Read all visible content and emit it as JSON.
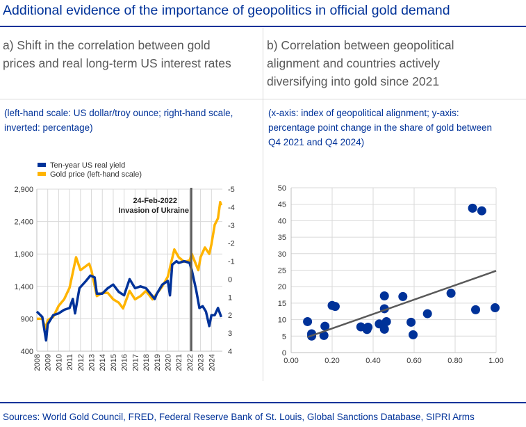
{
  "title": "Additional evidence of the importance of geopolitics in official gold demand",
  "panel_a": {
    "title_line1": "a) Shift in the correlation between gold",
    "title_line2": "prices and real long-term US interest rates",
    "subtitle_line1": "(left-hand scale: US dollar/troy ounce; right-hand scale,",
    "subtitle_line2": "inverted: percentage)"
  },
  "panel_b": {
    "title_line1": "b) Correlation between geopolitical",
    "title_line2": "alignment and countries actively",
    "title_line3": "diversifying into gold since 2021",
    "subtitle_line1": "(x-axis: index of geopolitical alignment; y-axis:",
    "subtitle_line2": "percentage point change in the share of gold between",
    "subtitle_line3": "Q4 2021 and Q4 2024)"
  },
  "sources": "Sources: World Gold Council, FRED, Federal Reserve Bank of St. Louis, Global Sanctions Database, SIPRI Arms",
  "chart_data": [
    {
      "type": "line",
      "legend_placement": "top-left",
      "grid": true,
      "xlim": [
        2008,
        2025
      ],
      "x_ticks": [
        "2008",
        "2009",
        "2010",
        "2011",
        "2012",
        "2013",
        "2014",
        "2015",
        "2016",
        "2017",
        "2018",
        "2019",
        "2020",
        "2021",
        "2022",
        "2023",
        "2024"
      ],
      "y_left": {
        "range": [
          400,
          2900
        ],
        "ticks": [
          "400",
          "900",
          "1,400",
          "1,900",
          "2,400",
          "2,900"
        ]
      },
      "y_right": {
        "range": [
          -5,
          4
        ],
        "inverted": true,
        "ticks": [
          "-5",
          "-4",
          "-3",
          "-2",
          "-1",
          "0",
          "1",
          "2",
          "3",
          "4"
        ]
      },
      "annotation": {
        "x": 2022.15,
        "line1": "24-Feb-2022",
        "line2": "Invasion of Ukraine",
        "color": "#595959"
      },
      "series": [
        {
          "name": "Ten-year US real yield",
          "axis": "right",
          "color": "#003299",
          "x": [
            2008,
            2008.5,
            2008.85,
            2009,
            2009.5,
            2010,
            2010.5,
            2011,
            2011.3,
            2011.5,
            2011.9,
            2012.5,
            2012.9,
            2013.3,
            2013.5,
            2014,
            2014.5,
            2015,
            2015.5,
            2016,
            2016.5,
            2017,
            2017.5,
            2018,
            2018.8,
            2019,
            2019.5,
            2020,
            2020.2,
            2020.4,
            2020.8,
            2021,
            2021.5,
            2022,
            2022.2,
            2022.6,
            2022.9,
            2023.2,
            2023.5,
            2023.8,
            2024,
            2024.3,
            2024.6,
            2024.9
          ],
          "y": [
            1.8,
            2.1,
            3.4,
            2.5,
            2.0,
            1.9,
            1.7,
            1.6,
            1.1,
            1.9,
            0.5,
            0.1,
            -0.2,
            -0.1,
            0.8,
            0.8,
            0.5,
            0.3,
            0.7,
            0.9,
            0.0,
            0.5,
            0.4,
            0.5,
            1.1,
            0.8,
            0.3,
            0.1,
            0.9,
            -0.8,
            -1.0,
            -0.9,
            -1.0,
            -0.9,
            -0.5,
            0.6,
            1.6,
            1.5,
            1.8,
            2.6,
            2.0,
            2.0,
            1.6,
            2.1
          ]
        },
        {
          "name": "Gold price (left-hand scale)",
          "axis": "left",
          "color": "#ffb400",
          "x": [
            2008,
            2008.5,
            2008.8,
            2009,
            2009.5,
            2010,
            2010.5,
            2011,
            2011.6,
            2012,
            2012.8,
            2013,
            2013.5,
            2014,
            2014.5,
            2015,
            2015.5,
            2015.9,
            2016.5,
            2017,
            2017.5,
            2018,
            2018.6,
            2019,
            2019.5,
            2020,
            2020.6,
            2021,
            2021.5,
            2022,
            2022.2,
            2022.8,
            2023,
            2023.4,
            2023.8,
            2024,
            2024.3,
            2024.6,
            2024.8,
            2024.9
          ],
          "y": [
            900,
            900,
            750,
            880,
            930,
            1100,
            1200,
            1380,
            1850,
            1650,
            1750,
            1650,
            1250,
            1300,
            1300,
            1200,
            1150,
            1060,
            1330,
            1200,
            1250,
            1330,
            1200,
            1290,
            1400,
            1550,
            1970,
            1850,
            1780,
            1800,
            1900,
            1650,
            1850,
            2000,
            1900,
            2050,
            2350,
            2450,
            2700,
            2650
          ]
        }
      ]
    },
    {
      "type": "scatter",
      "grid": true,
      "xlim": [
        0,
        1
      ],
      "ylim": [
        0,
        50
      ],
      "x_ticks": [
        "0.00",
        "0.20",
        "0.40",
        "0.60",
        "0.80",
        "1.00"
      ],
      "y_ticks": [
        "0",
        "5",
        "10",
        "15",
        "20",
        "25",
        "30",
        "35",
        "40",
        "45",
        "50"
      ],
      "color": "#003299",
      "trend_color": "#595959",
      "points": [
        [
          0.08,
          9.4
        ],
        [
          0.1,
          5.7
        ],
        [
          0.1,
          5.0
        ],
        [
          0.16,
          5.2
        ],
        [
          0.165,
          8.0
        ],
        [
          0.2,
          14.3
        ],
        [
          0.215,
          14.0
        ],
        [
          0.34,
          7.8
        ],
        [
          0.37,
          7.0
        ],
        [
          0.375,
          7.7
        ],
        [
          0.43,
          8.7
        ],
        [
          0.455,
          17.2
        ],
        [
          0.455,
          13.3
        ],
        [
          0.455,
          7.1
        ],
        [
          0.465,
          9.4
        ],
        [
          0.545,
          17.0
        ],
        [
          0.585,
          9.2
        ],
        [
          0.595,
          5.4
        ],
        [
          0.665,
          11.8
        ],
        [
          0.78,
          18.0
        ],
        [
          0.885,
          43.8
        ],
        [
          0.93,
          43.0
        ],
        [
          0.9,
          13.0
        ],
        [
          0.995,
          13.6
        ]
      ],
      "trend_line": [
        [
          0.08,
          4.7
        ],
        [
          1.0,
          24.8
        ]
      ]
    }
  ]
}
